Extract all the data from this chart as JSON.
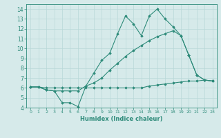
{
  "xlabel": "Humidex (Indice chaleur)",
  "background_color": "#d6eaea",
  "grid_color": "#b8d8d8",
  "line_color": "#2e8b7a",
  "xlim": [
    -0.5,
    23.5
  ],
  "ylim": [
    4,
    14.5
  ],
  "yticks": [
    4,
    5,
    6,
    7,
    8,
    9,
    10,
    11,
    12,
    13,
    14
  ],
  "xticks": [
    0,
    1,
    2,
    3,
    4,
    5,
    6,
    7,
    8,
    9,
    10,
    11,
    12,
    13,
    14,
    15,
    16,
    17,
    18,
    19,
    20,
    21,
    22,
    23
  ],
  "series": [
    [
      6.1,
      6.1,
      5.8,
      5.7,
      4.5,
      4.5,
      4.1,
      6.2,
      7.5,
      8.8,
      9.5,
      11.5,
      13.3,
      12.5,
      11.3,
      13.3,
      14.0,
      13.0,
      12.2,
      11.3,
      9.3,
      7.3,
      6.8,
      6.7
    ],
    [
      6.1,
      6.1,
      5.8,
      5.7,
      5.7,
      5.7,
      5.7,
      6.2,
      6.5,
      7.0,
      7.8,
      8.5,
      9.2,
      9.8,
      10.3,
      10.8,
      11.2,
      11.5,
      11.8,
      11.3,
      9.3,
      7.3,
      6.8,
      6.7
    ],
    [
      6.1,
      6.1,
      6.0,
      6.0,
      6.0,
      6.0,
      6.0,
      6.0,
      6.0,
      6.0,
      6.0,
      6.0,
      6.0,
      6.0,
      6.0,
      6.2,
      6.3,
      6.4,
      6.5,
      6.6,
      6.7,
      6.7,
      6.8,
      6.7
    ]
  ]
}
